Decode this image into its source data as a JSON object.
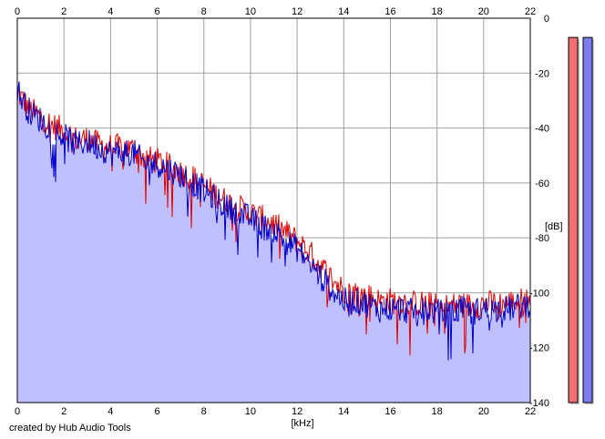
{
  "credit": "created by Hub Audio Tools",
  "chart_data": {
    "type": "line",
    "title": "",
    "xlabel": "[kHz]",
    "ylabel": "[dB]",
    "xlim": [
      0,
      22
    ],
    "ylim": [
      -140,
      0
    ],
    "x_ticks": [
      "0",
      "2",
      "4",
      "6",
      "8",
      "10",
      "12",
      "14",
      "16",
      "18",
      "20",
      "22"
    ],
    "y_ticks": [
      "0",
      "-20",
      "-40",
      "-60",
      "-80",
      "-100",
      "-120",
      "-140"
    ],
    "grid": true,
    "fill_color": "#c0c0ff",
    "series": [
      {
        "color": "#dd0000",
        "x": [
          0,
          0.5,
          1,
          1.5,
          2,
          2.5,
          3,
          3.5,
          4,
          4.5,
          5,
          5.5,
          6,
          6.5,
          7,
          7.5,
          8,
          8.5,
          9,
          9.5,
          10,
          10.5,
          11,
          11.5,
          12,
          12.5,
          13,
          13.5,
          14,
          14.5,
          15,
          15.5,
          16,
          16.5,
          17,
          17.5,
          18,
          18.5,
          19,
          19.5,
          20,
          20.5,
          21,
          21.5,
          22
        ],
        "y": [
          -27,
          -33,
          -36,
          -39,
          -41,
          -44,
          -44,
          -46,
          -47,
          -47,
          -48,
          -51,
          -52,
          -54,
          -56,
          -58,
          -61,
          -64,
          -67,
          -69,
          -71,
          -73,
          -75,
          -78,
          -81,
          -85,
          -90,
          -95,
          -99,
          -100,
          -101,
          -103,
          -103,
          -103,
          -104,
          -104,
          -105,
          -105,
          -104,
          -105,
          -104,
          -104,
          -104,
          -103,
          -103
        ]
      },
      {
        "color": "#0000c8",
        "x": [
          0,
          0.5,
          1,
          1.5,
          2,
          2.5,
          3,
          3.5,
          4,
          4.5,
          5,
          5.5,
          6,
          6.5,
          7,
          7.5,
          8,
          8.5,
          9,
          9.5,
          10,
          10.5,
          11,
          11.5,
          12,
          12.5,
          13,
          13.5,
          14,
          14.5,
          15,
          15.5,
          16,
          16.5,
          17,
          17.5,
          18,
          18.5,
          19,
          19.5,
          20,
          20.5,
          21,
          21.5,
          22
        ],
        "y": [
          -26,
          -34,
          -37,
          -41,
          -43,
          -46,
          -45,
          -47,
          -49,
          -49,
          -49,
          -53,
          -53,
          -55,
          -57,
          -60,
          -63,
          -66,
          -69,
          -71,
          -73,
          -76,
          -77,
          -81,
          -84,
          -89,
          -94,
          -99,
          -103,
          -103,
          -104,
          -106,
          -106,
          -106,
          -107,
          -106,
          -107,
          -108,
          -106,
          -107,
          -106,
          -106,
          -106,
          -105,
          -104
        ]
      }
    ],
    "meters": [
      {
        "color": "#ee7070",
        "level_db": -7
      },
      {
        "color": "#7c7cee",
        "level_db": -7
      }
    ]
  }
}
